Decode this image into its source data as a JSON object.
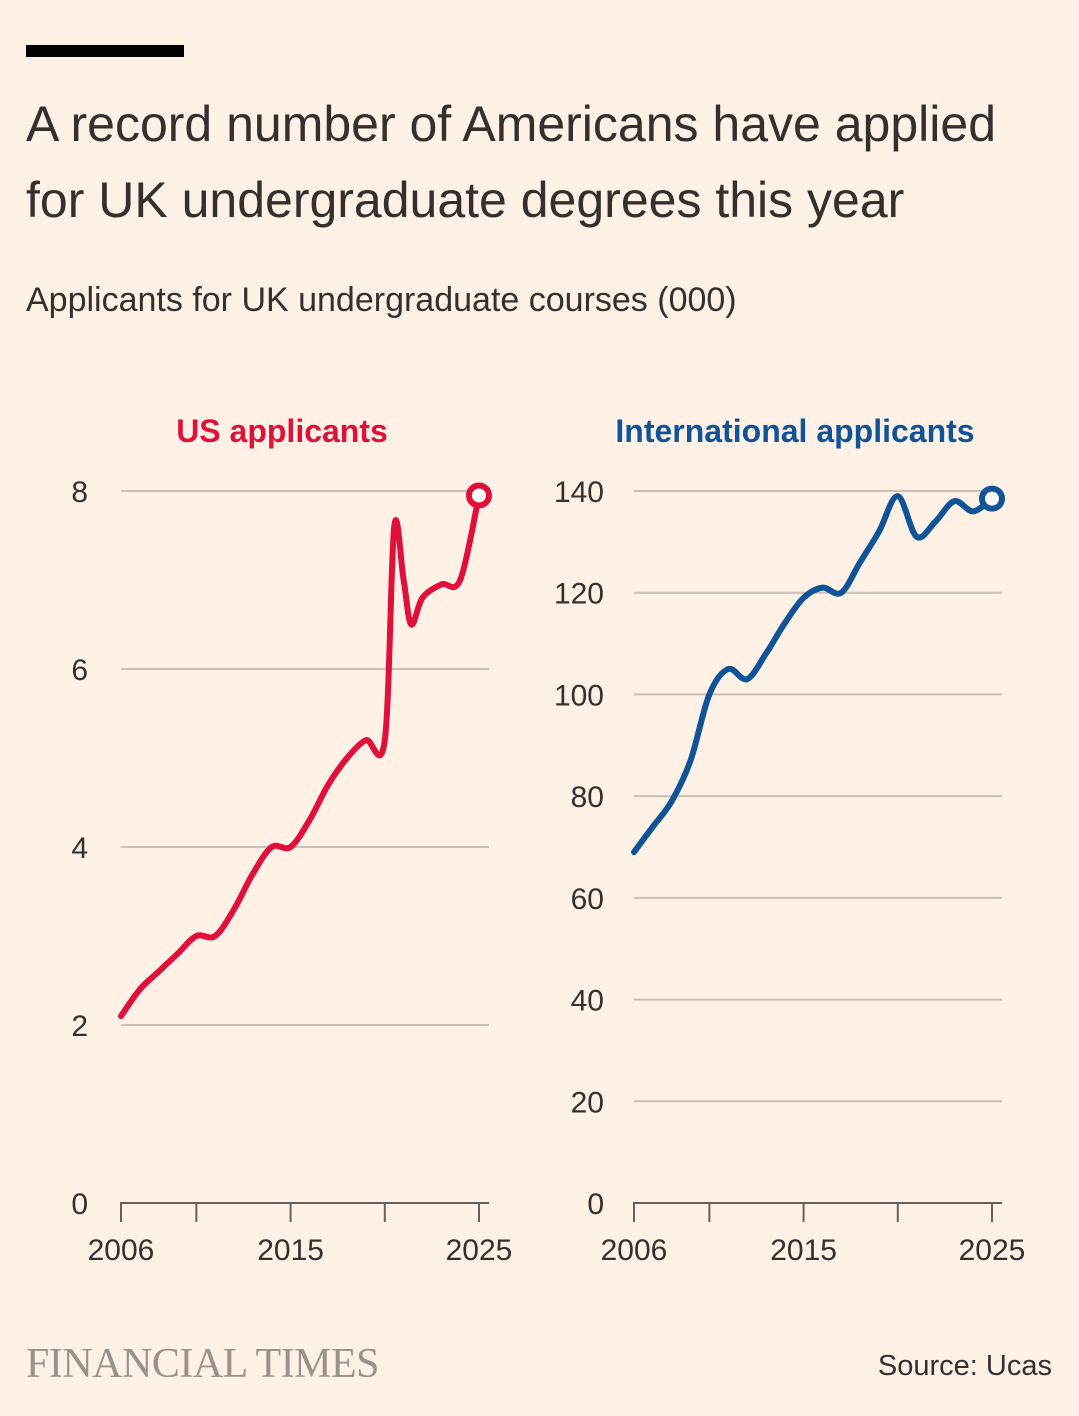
{
  "title": "A record number of Americans have applied for UK undergraduate degrees this year",
  "subtitle": "Applicants for UK undergraduate courses (000)",
  "source": "Source: Ucas",
  "logo": "FINANCIAL TIMES",
  "colors": {
    "background": "#FFF1E5",
    "us": "#E0103A",
    "intl": "#0F5499",
    "grid": "#C7BFB8",
    "text": "#33302E"
  },
  "chart_data": [
    {
      "type": "line",
      "title": "US applicants",
      "color": "#E0103A",
      "ylim": [
        0,
        8
      ],
      "yticks": [
        0,
        2,
        4,
        6,
        8
      ],
      "xlim": [
        2006,
        2025
      ],
      "xtick_marks": [
        2006,
        2010,
        2015,
        2020,
        2025
      ],
      "xtick_labels": [
        2006,
        2015,
        2025
      ],
      "x": [
        2006,
        2007,
        2008,
        2009,
        2010,
        2011,
        2012,
        2013,
        2014,
        2015,
        2016,
        2017,
        2018,
        2019,
        2020,
        2020.5,
        2021,
        2021.4,
        2022,
        2023,
        2024,
        2025
      ],
      "y": [
        2.1,
        2.4,
        2.6,
        2.8,
        3.0,
        3.0,
        3.3,
        3.7,
        4.0,
        4.0,
        4.3,
        4.7,
        5.0,
        5.2,
        5.2,
        7.6,
        7.0,
        6.5,
        6.8,
        6.95,
        7.0,
        7.95
      ]
    },
    {
      "type": "line",
      "title": "International applicants",
      "color": "#0F5499",
      "ylim": [
        0,
        140
      ],
      "yticks": [
        0,
        20,
        40,
        60,
        80,
        100,
        120,
        140
      ],
      "xlim": [
        2006,
        2025
      ],
      "xtick_marks": [
        2006,
        2010,
        2015,
        2020,
        2025
      ],
      "xtick_labels": [
        2006,
        2015,
        2025
      ],
      "x": [
        2006,
        2007,
        2008,
        2009,
        2010,
        2011,
        2012,
        2013,
        2014,
        2015,
        2016,
        2017,
        2018,
        2019,
        2020,
        2021,
        2022,
        2023,
        2024,
        2025
      ],
      "y": [
        69,
        74,
        79,
        87,
        100,
        105,
        103,
        108,
        114,
        119,
        121,
        120,
        126,
        132,
        139,
        131,
        134,
        138,
        136,
        138.5
      ]
    }
  ]
}
